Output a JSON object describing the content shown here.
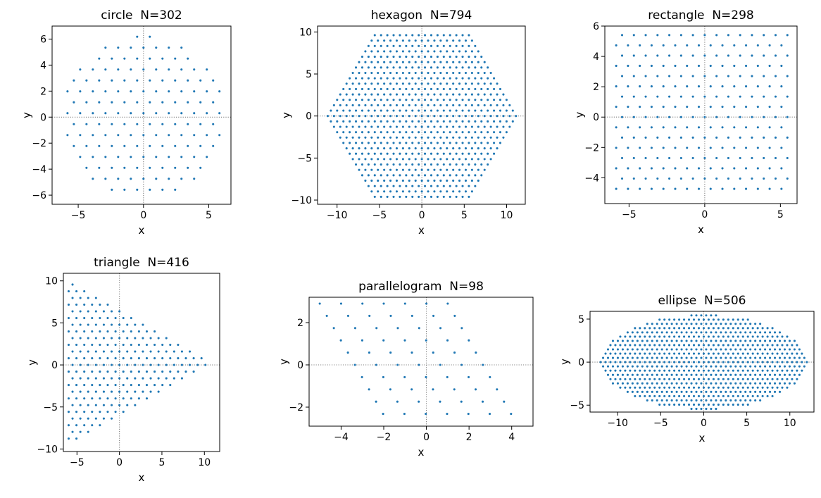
{
  "figure": {
    "background": "#ffffff",
    "point_color": "#1f77b4",
    "reference_line_color": "#808080"
  },
  "chart_data": [
    {
      "type": "scatter",
      "title": "circle  N=302",
      "shape": "circle",
      "n_points": 302,
      "xlabel": "x",
      "ylabel": "y",
      "xlim": [
        -7.0,
        6.7
      ],
      "ylim": [
        -6.7,
        7.0
      ],
      "xticks": [
        -5,
        0,
        5
      ],
      "yticks": [
        -6,
        -4,
        -2,
        0,
        2,
        4,
        6
      ],
      "reference_lines": {
        "x": 0,
        "y": 0,
        "style": "dotted"
      },
      "grid": false,
      "lattice": {
        "kind": "triangular",
        "spacing": 0.97,
        "y_offset": 0.3
      },
      "boundary": {
        "kind": "circle",
        "radius": 6.25
      }
    },
    {
      "type": "scatter",
      "title": "hexagon  N=794",
      "shape": "hexagon",
      "n_points": 794,
      "xlabel": "x",
      "ylabel": "y",
      "xlim": [
        -12.3,
        12.2
      ],
      "ylim": [
        -10.5,
        10.7
      ],
      "xticks": [
        -10,
        -5,
        0,
        5,
        10
      ],
      "yticks": [
        -10,
        -5,
        0,
        5,
        10
      ],
      "reference_lines": {
        "x": 0,
        "y": 0,
        "style": "dotted"
      },
      "grid": false,
      "lattice": {
        "kind": "triangular",
        "spacing": 0.74,
        "y_offset": 0.0
      },
      "boundary": {
        "kind": "hexagon",
        "half_height": 9.7,
        "half_width": 11.3
      }
    },
    {
      "type": "scatter",
      "title": "rectangle  N=298",
      "shape": "rectangle",
      "n_points": 298,
      "xlabel": "x",
      "ylabel": "y",
      "xlim": [
        -6.6,
        6.1
      ],
      "ylim": [
        -5.7,
        6.0
      ],
      "xticks": [
        -5,
        0,
        5
      ],
      "yticks": [
        -4,
        -2,
        0,
        2,
        4,
        6
      ],
      "reference_lines": {
        "x": 0,
        "y": 0,
        "style": "dotted"
      },
      "grid": false,
      "lattice": {
        "kind": "triangular",
        "spacing": 0.78,
        "y_offset": 0.0
      },
      "boundary": {
        "kind": "rectangle",
        "x_range": [
          -6.1,
          5.6
        ],
        "y_range": [
          -5.3,
          5.5
        ]
      }
    },
    {
      "type": "scatter",
      "title": "triangle  N=416",
      "shape": "triangle",
      "n_points": 416,
      "xlabel": "x",
      "ylabel": "y",
      "xlim": [
        -6.6,
        11.8
      ],
      "ylim": [
        -10.3,
        10.9
      ],
      "xticks": [
        -5,
        0,
        5,
        10
      ],
      "yticks": [
        -10,
        -5,
        0,
        5,
        10
      ],
      "reference_lines": {
        "x": 0,
        "y": 0,
        "style": "dotted"
      },
      "grid": false,
      "lattice": {
        "kind": "triangular",
        "spacing": 0.92,
        "y_offset": 0.0
      },
      "boundary": {
        "kind": "triangle",
        "vertices": [
          [
            -6.0,
            10.0
          ],
          [
            -6.0,
            -9.5
          ],
          [
            10.8,
            0.2
          ]
        ]
      }
    },
    {
      "type": "scatter",
      "title": "parallelogram  N=98",
      "shape": "parallelogram",
      "n_points": 98,
      "xlabel": "x",
      "ylabel": "y",
      "xlim": [
        -5.5,
        5.0
      ],
      "ylim": [
        -2.9,
        3.2
      ],
      "xticks": [
        -4,
        -2,
        0,
        2,
        4
      ],
      "yticks": [
        -2,
        0,
        2
      ],
      "reference_lines": {
        "x": 0,
        "y": 0,
        "style": "dotted"
      },
      "grid": false,
      "lattice": {
        "kind": "slanted",
        "x_spacing": 1.0,
        "row_spacing": 0.58,
        "row_shift": 0.33
      },
      "boundary": {
        "kind": "parallelogram",
        "top_row": [
          -5.0,
          1.0
        ],
        "bottom_row": [
          -1.5,
          4.5
        ],
        "y_top": 2.9,
        "y_bottom": -2.6
      }
    },
    {
      "type": "scatter",
      "title": "ellipse  N=506",
      "shape": "ellipse",
      "n_points": 506,
      "xlabel": "x",
      "ylabel": "y",
      "xlim": [
        -13.2,
        12.8
      ],
      "ylim": [
        -5.8,
        5.9
      ],
      "xticks": [
        -10,
        -5,
        0,
        5,
        10
      ],
      "yticks": [
        -5,
        0,
        5
      ],
      "reference_lines": {
        "x": 0,
        "y": 0,
        "style": "dotted"
      },
      "grid": false,
      "lattice": {
        "kind": "triangular",
        "spacing": 0.57,
        "y_offset": 0.0
      },
      "boundary": {
        "kind": "ellipse",
        "semi_x": 12.0,
        "semi_y": 5.5
      }
    }
  ]
}
